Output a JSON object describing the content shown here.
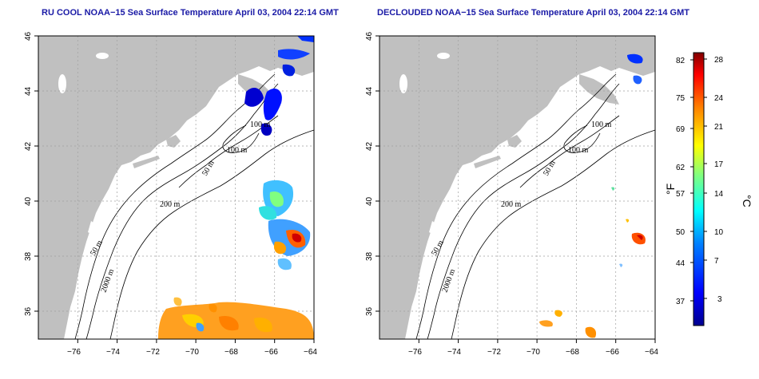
{
  "panels": [
    {
      "id": "ru-cool",
      "title": "RU COOL NOAA−15 Sea Surface Temperature April 03, 2004 22:14 GMT"
    },
    {
      "id": "declouded",
      "title": "DECLOUDED NOAA−15 Sea Surface Temperature April 03, 2004 22:14 GMT"
    }
  ],
  "axes": {
    "lon_ticks": [
      "−76",
      "−74",
      "−72",
      "−70",
      "−68",
      "−66",
      "−64"
    ],
    "lat_ticks": [
      "46",
      "44",
      "42",
      "40",
      "38",
      "36"
    ],
    "lon_range": [
      -77,
      -63
    ],
    "lat_range": [
      35,
      46
    ]
  },
  "contour_labels": [
    "100 m",
    "100 m",
    "50 m",
    "200 m",
    "50 m",
    "2000 m"
  ],
  "colorbar": {
    "fahrenheit_ticks": [
      "82",
      "75",
      "69",
      "62",
      "57",
      "50",
      "44",
      "37"
    ],
    "celsius_ticks": [
      "28",
      "24",
      "21",
      "17",
      "14",
      "10",
      "7",
      "3"
    ],
    "unit_f": "°F",
    "unit_c": "°C",
    "colors": [
      "#00008f",
      "#0000ff",
      "#0080ff",
      "#00ffff",
      "#80ff80",
      "#ffff00",
      "#ff8000",
      "#ff0000",
      "#800000"
    ]
  },
  "colors": {
    "land": "#c0c0c0",
    "ocean": "#ffffff",
    "title": "#1a1aa6",
    "grid": "#a0a0a0"
  }
}
